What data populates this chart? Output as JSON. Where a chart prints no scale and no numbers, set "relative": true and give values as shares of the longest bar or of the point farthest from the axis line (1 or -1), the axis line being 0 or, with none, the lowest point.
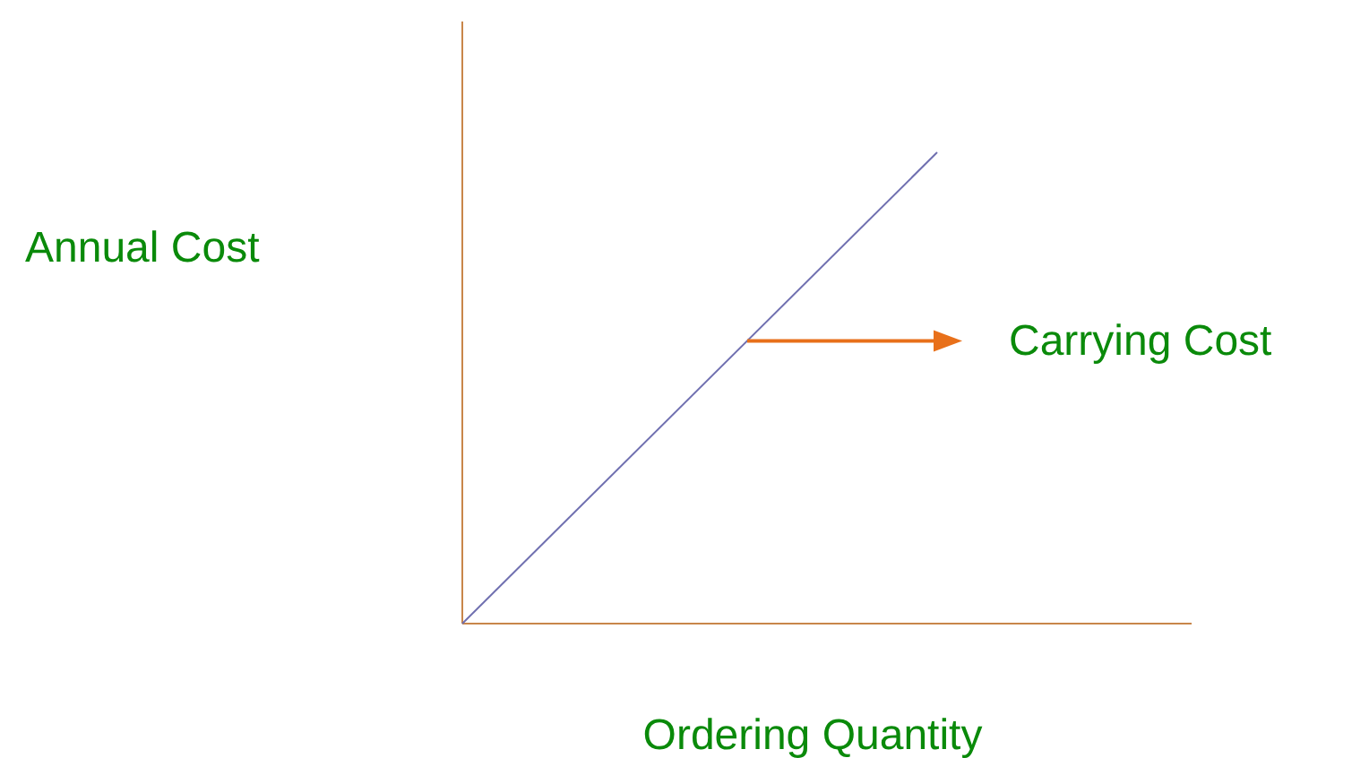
{
  "chart_data": {
    "type": "line",
    "relative": true,
    "xlabel": "Ordering Quantity",
    "ylabel": "Annual Cost",
    "annotations": [
      "Carrying Cost"
    ],
    "categories": [
      null,
      null
    ],
    "series": [
      {
        "color": "#7070b0",
        "values": [
          0,
          1
        ]
      }
    ],
    "line_style": "solid"
  }
}
